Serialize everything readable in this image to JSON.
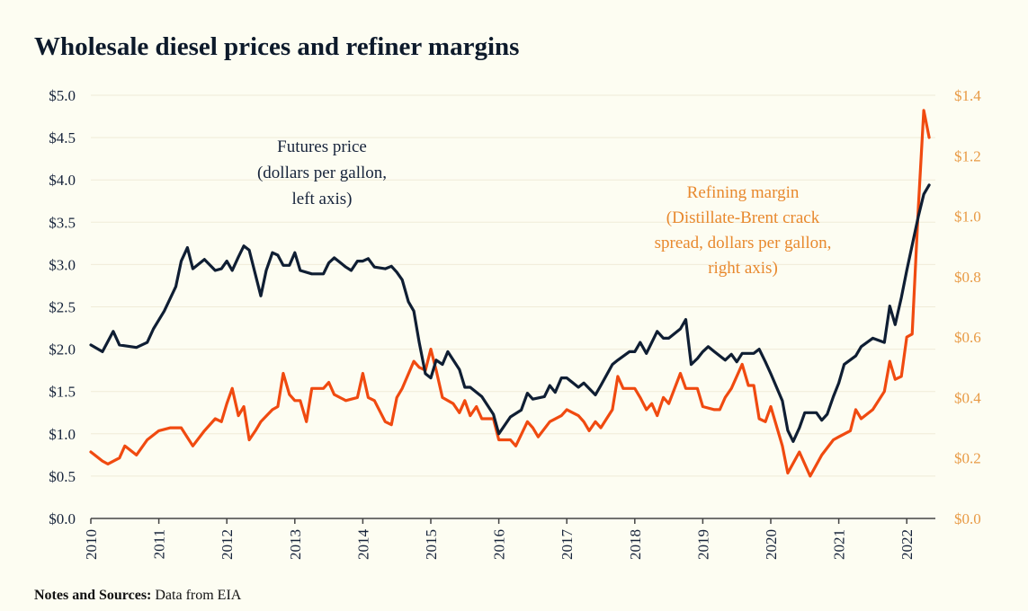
{
  "chart_data": {
    "type": "line",
    "title": "Wholesale diesel prices and refiner margins",
    "xlabel": "",
    "ylabel_left": "",
    "ylabel_right": "",
    "x_range": [
      2010,
      2022.45
    ],
    "x_ticks": [
      "2010",
      "2011",
      "2012",
      "2013",
      "2014",
      "2015",
      "2016",
      "2017",
      "2018",
      "2019",
      "2020",
      "2021",
      "2022"
    ],
    "y_left": {
      "range": [
        0,
        5.0
      ],
      "ticks": [
        "$0.0",
        "$0.5",
        "$1.0",
        "$1.5",
        "$2.0",
        "$2.5",
        "$3.0",
        "$3.5",
        "$4.0",
        "$4.5",
        "$5.0"
      ],
      "tick_values": [
        0,
        0.5,
        1.0,
        1.5,
        2.0,
        2.5,
        3.0,
        3.5,
        4.0,
        4.5,
        5.0
      ]
    },
    "y_right": {
      "range": [
        0,
        1.4
      ],
      "ticks": [
        "$0.0",
        "$0.2",
        "$0.4",
        "$0.6",
        "$0.8",
        "$1.0",
        "$1.2",
        "$1.4"
      ],
      "tick_values": [
        0,
        0.2,
        0.4,
        0.6,
        0.8,
        1.0,
        1.2,
        1.4
      ]
    },
    "grid": true,
    "series": [
      {
        "name": "Futures price",
        "axis": "left",
        "color": "#0f1e33",
        "annotation": [
          "Futures price",
          "(dollars per gallon,",
          "left axis)"
        ],
        "x": [
          2010.0,
          2010.17,
          2010.33,
          2010.42,
          2010.67,
          2010.83,
          2010.92,
          2011.08,
          2011.25,
          2011.33,
          2011.42,
          2011.5,
          2011.67,
          2011.83,
          2011.92,
          2012.0,
          2012.08,
          2012.17,
          2012.25,
          2012.33,
          2012.5,
          2012.58,
          2012.67,
          2012.75,
          2012.83,
          2012.92,
          2013.0,
          2013.08,
          2013.25,
          2013.42,
          2013.5,
          2013.58,
          2013.75,
          2013.83,
          2013.92,
          2014.0,
          2014.08,
          2014.17,
          2014.33,
          2014.42,
          2014.5,
          2014.58,
          2014.67,
          2014.75,
          2014.83,
          2014.92,
          2015.0,
          2015.08,
          2015.17,
          2015.25,
          2015.42,
          2015.5,
          2015.58,
          2015.75,
          2015.92,
          2016.0,
          2016.17,
          2016.33,
          2016.42,
          2016.5,
          2016.67,
          2016.75,
          2016.83,
          2016.92,
          2017.0,
          2017.17,
          2017.25,
          2017.42,
          2017.5,
          2017.67,
          2017.75,
          2017.92,
          2018.0,
          2018.08,
          2018.17,
          2018.33,
          2018.42,
          2018.5,
          2018.67,
          2018.75,
          2018.83,
          2018.92,
          2019.0,
          2019.08,
          2019.17,
          2019.33,
          2019.42,
          2019.5,
          2019.58,
          2019.75,
          2019.83,
          2019.92,
          2020.0,
          2020.17,
          2020.25,
          2020.33,
          2020.42,
          2020.5,
          2020.67,
          2020.75,
          2020.83,
          2020.92,
          2021.0,
          2021.08,
          2021.25,
          2021.33,
          2021.5,
          2021.67,
          2021.75,
          2021.83,
          2021.92,
          2022.0,
          2022.17,
          2022.25,
          2022.33
        ],
        "values": [
          2.05,
          1.97,
          2.21,
          2.05,
          2.02,
          2.08,
          2.24,
          2.45,
          2.74,
          3.04,
          3.2,
          2.95,
          3.06,
          2.93,
          2.95,
          3.04,
          2.93,
          3.09,
          3.22,
          3.17,
          2.63,
          2.93,
          3.14,
          3.11,
          2.99,
          2.99,
          3.14,
          2.93,
          2.89,
          2.89,
          3.02,
          3.08,
          2.97,
          2.93,
          3.04,
          3.04,
          3.07,
          2.97,
          2.95,
          2.98,
          2.91,
          2.82,
          2.56,
          2.45,
          2.08,
          1.71,
          1.66,
          1.87,
          1.82,
          1.97,
          1.76,
          1.55,
          1.55,
          1.44,
          1.23,
          1.0,
          1.2,
          1.28,
          1.48,
          1.41,
          1.44,
          1.57,
          1.49,
          1.66,
          1.66,
          1.55,
          1.6,
          1.46,
          1.57,
          1.82,
          1.87,
          1.97,
          1.97,
          2.08,
          1.95,
          2.21,
          2.13,
          2.13,
          2.24,
          2.35,
          1.82,
          1.89,
          1.97,
          2.03,
          1.97,
          1.87,
          1.94,
          1.85,
          1.95,
          1.95,
          2.0,
          1.85,
          1.71,
          1.39,
          1.04,
          0.91,
          1.07,
          1.25,
          1.25,
          1.16,
          1.23,
          1.44,
          1.6,
          1.82,
          1.92,
          2.03,
          2.13,
          2.08,
          2.51,
          2.29,
          2.61,
          2.93,
          3.57,
          3.83,
          3.94
        ]
      },
      {
        "name": "Refining margin",
        "axis": "right",
        "color": "#f04a10",
        "annotation": [
          "Refining margin",
          "(Distillate-Brent crack",
          "spread, dollars per gallon,",
          "right axis)"
        ],
        "x": [
          2010.0,
          2010.17,
          2010.25,
          2010.42,
          2010.5,
          2010.67,
          2010.83,
          2011.0,
          2011.17,
          2011.33,
          2011.5,
          2011.67,
          2011.83,
          2011.92,
          2012.0,
          2012.08,
          2012.17,
          2012.25,
          2012.33,
          2012.42,
          2012.5,
          2012.67,
          2012.75,
          2012.83,
          2012.92,
          2013.0,
          2013.08,
          2013.17,
          2013.25,
          2013.42,
          2013.5,
          2013.58,
          2013.75,
          2013.92,
          2014.0,
          2014.08,
          2014.17,
          2014.33,
          2014.42,
          2014.5,
          2014.58,
          2014.75,
          2014.83,
          2014.92,
          2015.0,
          2015.08,
          2015.17,
          2015.33,
          2015.42,
          2015.5,
          2015.58,
          2015.67,
          2015.75,
          2015.92,
          2016.0,
          2016.17,
          2016.25,
          2016.42,
          2016.5,
          2016.58,
          2016.75,
          2016.92,
          2017.0,
          2017.17,
          2017.25,
          2017.33,
          2017.42,
          2017.5,
          2017.67,
          2017.75,
          2017.83,
          2017.92,
          2018.0,
          2018.08,
          2018.17,
          2018.25,
          2018.33,
          2018.42,
          2018.5,
          2018.67,
          2018.75,
          2018.83,
          2018.92,
          2019.0,
          2019.17,
          2019.25,
          2019.33,
          2019.42,
          2019.58,
          2019.67,
          2019.75,
          2019.83,
          2019.92,
          2020.0,
          2020.17,
          2020.25,
          2020.42,
          2020.58,
          2020.75,
          2020.92,
          2021.0,
          2021.17,
          2021.25,
          2021.33,
          2021.5,
          2021.67,
          2021.75,
          2021.83,
          2021.92,
          2022.0,
          2022.08,
          2022.17,
          2022.25,
          2022.33
        ],
        "values": [
          0.22,
          0.19,
          0.18,
          0.2,
          0.24,
          0.21,
          0.26,
          0.29,
          0.3,
          0.3,
          0.24,
          0.29,
          0.33,
          0.32,
          0.38,
          0.43,
          0.34,
          0.37,
          0.26,
          0.29,
          0.32,
          0.36,
          0.37,
          0.48,
          0.41,
          0.39,
          0.39,
          0.32,
          0.43,
          0.43,
          0.45,
          0.41,
          0.39,
          0.4,
          0.48,
          0.4,
          0.39,
          0.32,
          0.31,
          0.4,
          0.43,
          0.52,
          0.5,
          0.49,
          0.56,
          0.49,
          0.4,
          0.38,
          0.35,
          0.39,
          0.34,
          0.37,
          0.33,
          0.33,
          0.26,
          0.26,
          0.24,
          0.32,
          0.3,
          0.27,
          0.32,
          0.34,
          0.36,
          0.34,
          0.32,
          0.29,
          0.32,
          0.3,
          0.36,
          0.47,
          0.43,
          0.43,
          0.43,
          0.4,
          0.36,
          0.38,
          0.34,
          0.4,
          0.38,
          0.48,
          0.43,
          0.43,
          0.43,
          0.37,
          0.36,
          0.36,
          0.4,
          0.43,
          0.51,
          0.44,
          0.44,
          0.33,
          0.32,
          0.37,
          0.24,
          0.15,
          0.22,
          0.14,
          0.21,
          0.26,
          0.27,
          0.29,
          0.36,
          0.33,
          0.36,
          0.42,
          0.52,
          0.46,
          0.47,
          0.6,
          0.61,
          1.03,
          1.35,
          1.26
        ]
      }
    ],
    "legend": "none (inline annotations)",
    "note": {
      "bold": "Notes and Sources:",
      "text": " Data from EIA"
    }
  },
  "colors": {
    "futures": "#0f1e33",
    "margin": "#f04a10",
    "right_axis_text": "#e89a45",
    "margin_annotation": "#e8892e",
    "background": "#fdfdf2"
  }
}
